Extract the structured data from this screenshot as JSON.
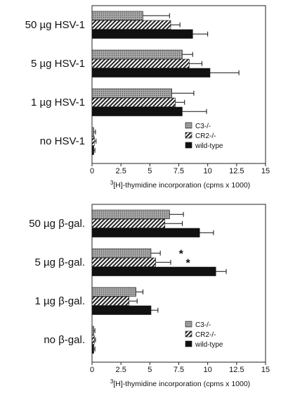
{
  "chart_data": [
    {
      "type": "bar",
      "orientation": "horizontal",
      "categories": [
        "50 µg HSV-1",
        "5 µg HSV-1",
        "1 µg HSV-1",
        "no HSV-1"
      ],
      "series": [
        {
          "name": "C3-/-",
          "values": [
            4.4,
            7.8,
            6.9,
            0.15
          ],
          "errors": [
            2.3,
            0.9,
            1.9,
            0.15
          ]
        },
        {
          "name": "CR2-/-",
          "values": [
            6.8,
            8.4,
            7.2,
            0.2
          ],
          "errors": [
            0.8,
            1.1,
            0.8,
            0.15
          ]
        },
        {
          "name": "wild-type",
          "values": [
            8.7,
            10.2,
            7.8,
            0.15
          ],
          "errors": [
            1.3,
            2.5,
            2.1,
            0.1
          ]
        }
      ],
      "xlim": [
        0,
        15
      ],
      "xticks": [
        "0",
        "2.5",
        "5",
        "7.5",
        "10",
        "12.5",
        "15"
      ],
      "xlabel_sup": "3",
      "xlabel_main": "[H]-thymidine incorporation (cpms x 1000)",
      "legend_position": "lower-right",
      "annotations": []
    },
    {
      "type": "bar",
      "orientation": "horizontal",
      "categories": [
        "50 µg β-gal.",
        "5 µg β-gal.",
        "1 µg β-gal.",
        "no β-gal."
      ],
      "series": [
        {
          "name": "C3-/-",
          "values": [
            6.7,
            5.1,
            3.8,
            0.15
          ],
          "errors": [
            1.2,
            0.8,
            0.6,
            0.1
          ]
        },
        {
          "name": "CR2-/-",
          "values": [
            6.3,
            5.5,
            3.2,
            0.2
          ],
          "errors": [
            1.5,
            1.3,
            0.7,
            0.1
          ]
        },
        {
          "name": "wild-type",
          "values": [
            9.3,
            10.7,
            5.1,
            0.15
          ],
          "errors": [
            1.2,
            0.9,
            0.6,
            0.1
          ]
        }
      ],
      "xlim": [
        0,
        15
      ],
      "xticks": [
        "0",
        "2.5",
        "5",
        "7.5",
        "10",
        "12.5",
        "15"
      ],
      "xlabel_sup": "3",
      "xlabel_main": "[H]-thymidine incorporation (cpms x 1000)",
      "legend_position": "lower-right",
      "annotations": [
        {
          "text": "*",
          "category_index": 1,
          "series_index": 0,
          "value": 7.7
        },
        {
          "text": "*",
          "category_index": 1,
          "series_index": 1,
          "value": 8.3
        }
      ]
    }
  ]
}
